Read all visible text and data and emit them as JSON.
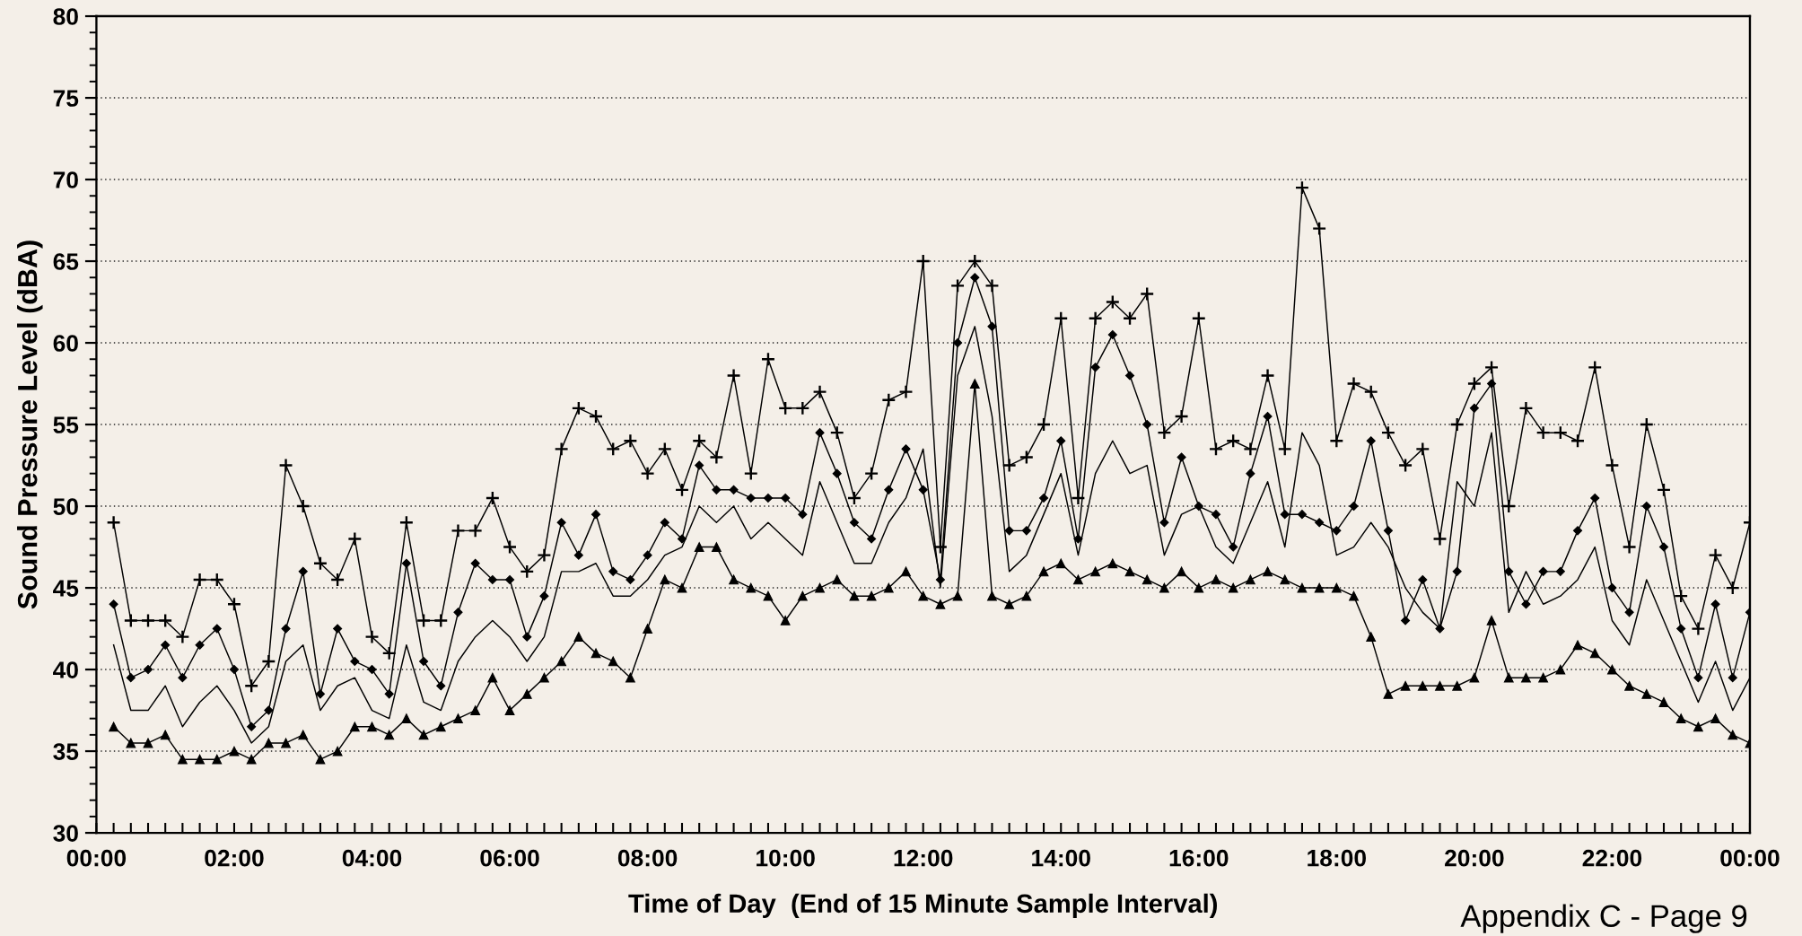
{
  "chart_data": {
    "type": "line",
    "xlabel": "Time of Day  (End of 15 Minute Sample Interval)",
    "ylabel": "Sound Pressure Level (dBA)",
    "annotations": [
      "Appendix C - Page 9"
    ],
    "x": [
      0.25,
      0.5,
      0.75,
      1,
      1.25,
      1.5,
      1.75,
      2,
      2.25,
      2.5,
      2.75,
      3,
      3.25,
      3.5,
      3.75,
      4,
      4.25,
      4.5,
      4.75,
      5,
      5.25,
      5.5,
      5.75,
      6,
      6.25,
      6.5,
      6.75,
      7,
      7.25,
      7.5,
      7.75,
      8,
      8.25,
      8.5,
      8.75,
      9,
      9.25,
      9.5,
      9.75,
      10,
      10.25,
      10.5,
      10.75,
      11,
      11.25,
      11.5,
      11.75,
      12,
      12.25,
      12.5,
      12.75,
      13,
      13.25,
      13.5,
      13.75,
      14,
      14.25,
      14.5,
      14.75,
      15,
      15.25,
      15.5,
      15.75,
      16,
      16.25,
      16.5,
      16.75,
      17,
      17.25,
      17.5,
      17.75,
      18,
      18.25,
      18.5,
      18.75,
      19,
      19.25,
      19.5,
      19.75,
      20,
      20.25,
      20.5,
      20.75,
      21,
      21.25,
      21.5,
      21.75,
      22,
      22.25,
      22.5,
      22.75,
      23,
      23.25,
      23.5,
      23.75,
      24
    ],
    "series": [
      {
        "color": "#000000",
        "marker": "cross",
        "values": [
          49,
          43,
          43,
          43,
          42,
          45.5,
          45.5,
          44,
          39,
          40.5,
          52.5,
          50,
          46.5,
          45.5,
          48,
          42,
          41,
          49,
          43,
          43,
          48.5,
          48.5,
          50.5,
          47.5,
          46,
          47,
          53.5,
          56,
          55.5,
          53.5,
          54,
          52,
          53.5,
          51,
          54,
          53,
          58,
          52,
          59,
          56,
          56,
          57,
          54.5,
          50.5,
          52,
          56.5,
          57,
          65,
          47.5,
          63.5,
          65,
          63.5,
          52.5,
          53,
          55,
          61.5,
          50.5,
          61.5,
          62.5,
          61.5,
          63,
          54.5,
          55.5,
          61.5,
          53.5,
          54,
          53.5,
          58,
          53.5,
          69.5,
          67,
          54,
          57.5,
          57,
          54.5,
          52.5,
          53.5,
          48,
          55,
          57.5,
          58.5,
          50,
          56,
          54.5,
          54.5,
          54,
          58.5,
          52.5,
          47.5,
          55,
          51,
          44.5,
          42.5,
          47,
          45,
          49
        ]
      },
      {
        "color": "#000000",
        "marker": "diamond",
        "values": [
          44,
          39.5,
          40,
          41.5,
          39.5,
          41.5,
          42.5,
          40,
          36.5,
          37.5,
          42.5,
          46,
          38.5,
          42.5,
          40.5,
          40,
          38.5,
          46.5,
          40.5,
          39,
          43.5,
          46.5,
          45.5,
          45.5,
          42,
          44.5,
          49,
          47,
          49.5,
          46,
          45.5,
          47,
          49,
          48,
          52.5,
          51,
          51,
          50.5,
          50.5,
          50.5,
          49.5,
          54.5,
          52,
          49,
          48,
          51,
          53.5,
          51,
          45.5,
          60,
          64,
          61,
          48.5,
          48.5,
          50.5,
          54,
          48,
          58.5,
          60.5,
          58,
          55,
          49,
          53,
          50,
          49.5,
          47.5,
          52,
          55.5,
          49.5,
          49.5,
          49,
          48.5,
          50,
          54,
          48.5,
          43,
          45.5,
          42.5,
          46,
          56,
          57.5,
          46,
          44,
          46,
          46,
          48.5,
          50.5,
          45,
          43.5,
          50,
          47.5,
          42.5,
          39.5,
          44,
          39.5,
          43.5
        ]
      },
      {
        "color": "#000000",
        "marker": "none",
        "values": [
          41.5,
          37.5,
          37.5,
          39,
          36.5,
          38,
          39,
          37.5,
          35.5,
          36.5,
          40.5,
          41.5,
          37.5,
          39,
          39.5,
          37.5,
          37,
          41.5,
          38,
          37.5,
          40.5,
          42,
          43,
          42,
          40.5,
          42,
          46,
          46,
          46.5,
          44.5,
          44.5,
          45.5,
          47,
          47.5,
          50,
          49,
          50,
          48,
          49,
          48,
          47,
          51.5,
          49,
          46.5,
          46.5,
          49,
          50.5,
          53.5,
          45,
          58,
          61,
          55.5,
          46,
          47,
          49.5,
          52,
          47,
          52,
          54,
          52,
          52.5,
          47,
          49.5,
          50,
          47.5,
          46.5,
          49,
          51.5,
          47.5,
          54.5,
          52.5,
          47,
          47.5,
          49,
          47.5,
          45,
          43.5,
          42.5,
          51.5,
          50,
          54.5,
          43.5,
          46,
          44,
          44.5,
          45.5,
          47.5,
          43,
          41.5,
          45.5,
          43,
          40.5,
          38,
          40.5,
          37.5,
          39.5
        ]
      },
      {
        "color": "#000000",
        "marker": "triangle",
        "values": [
          36.5,
          35.5,
          35.5,
          36,
          34.5,
          34.5,
          34.5,
          35,
          34.5,
          35.5,
          35.5,
          36,
          34.5,
          35,
          36.5,
          36.5,
          36,
          37,
          36,
          36.5,
          37,
          37.5,
          39.5,
          37.5,
          38.5,
          39.5,
          40.5,
          42,
          41,
          40.5,
          39.5,
          42.5,
          45.5,
          45,
          47.5,
          47.5,
          45.5,
          45,
          44.5,
          43,
          44.5,
          45,
          45.5,
          44.5,
          44.5,
          45,
          46,
          44.5,
          44,
          44.5,
          57.5,
          44.5,
          44,
          44.5,
          46,
          46.5,
          45.5,
          46,
          46.5,
          46,
          45.5,
          45,
          46,
          45,
          45.5,
          45,
          45.5,
          46,
          45.5,
          45,
          45,
          45,
          44.5,
          42,
          38.5,
          39,
          39,
          39,
          39,
          39.5,
          43,
          39.5,
          39.5,
          39.5,
          40,
          41.5,
          41,
          40,
          39,
          38.5,
          38,
          37,
          36.5,
          37,
          36,
          35.5
        ]
      }
    ],
    "xlim": [
      0,
      24
    ],
    "ylim": [
      30,
      80
    ],
    "xticks": [
      {
        "value": 0,
        "label": "00:00"
      },
      {
        "value": 0.25,
        "label": null
      },
      {
        "value": 0.5,
        "label": null
      },
      {
        "value": 0.75,
        "label": null
      },
      {
        "value": 1,
        "label": null
      },
      {
        "value": 1.25,
        "label": null
      },
      {
        "value": 1.5,
        "label": null
      },
      {
        "value": 1.75,
        "label": null
      },
      {
        "value": 2,
        "label": "02:00"
      },
      {
        "value": 2.25,
        "label": null
      },
      {
        "value": 2.5,
        "label": null
      },
      {
        "value": 2.75,
        "label": null
      },
      {
        "value": 3,
        "label": null
      },
      {
        "value": 3.25,
        "label": null
      },
      {
        "value": 3.5,
        "label": null
      },
      {
        "value": 3.75,
        "label": null
      },
      {
        "value": 4,
        "label": "04:00"
      },
      {
        "value": 4.25,
        "label": null
      },
      {
        "value": 4.5,
        "label": null
      },
      {
        "value": 4.75,
        "label": null
      },
      {
        "value": 5,
        "label": null
      },
      {
        "value": 5.25,
        "label": null
      },
      {
        "value": 5.5,
        "label": null
      },
      {
        "value": 5.75,
        "label": null
      },
      {
        "value": 6,
        "label": "06:00"
      },
      {
        "value": 6.25,
        "label": null
      },
      {
        "value": 6.5,
        "label": null
      },
      {
        "value": 6.75,
        "label": null
      },
      {
        "value": 7,
        "label": null
      },
      {
        "value": 7.25,
        "label": null
      },
      {
        "value": 7.5,
        "label": null
      },
      {
        "value": 7.75,
        "label": null
      },
      {
        "value": 8,
        "label": "08:00"
      },
      {
        "value": 8.25,
        "label": null
      },
      {
        "value": 8.5,
        "label": null
      },
      {
        "value": 8.75,
        "label": null
      },
      {
        "value": 9,
        "label": null
      },
      {
        "value": 9.25,
        "label": null
      },
      {
        "value": 9.5,
        "label": null
      },
      {
        "value": 9.75,
        "label": null
      },
      {
        "value": 10,
        "label": "10:00"
      },
      {
        "value": 10.25,
        "label": null
      },
      {
        "value": 10.5,
        "label": null
      },
      {
        "value": 10.75,
        "label": null
      },
      {
        "value": 11,
        "label": null
      },
      {
        "value": 11.25,
        "label": null
      },
      {
        "value": 11.5,
        "label": null
      },
      {
        "value": 11.75,
        "label": null
      },
      {
        "value": 12,
        "label": "12:00"
      },
      {
        "value": 12.25,
        "label": null
      },
      {
        "value": 12.5,
        "label": null
      },
      {
        "value": 12.75,
        "label": null
      },
      {
        "value": 13,
        "label": null
      },
      {
        "value": 13.25,
        "label": null
      },
      {
        "value": 13.5,
        "label": null
      },
      {
        "value": 13.75,
        "label": null
      },
      {
        "value": 14,
        "label": "14:00"
      },
      {
        "value": 14.25,
        "label": null
      },
      {
        "value": 14.5,
        "label": null
      },
      {
        "value": 14.75,
        "label": null
      },
      {
        "value": 15,
        "label": null
      },
      {
        "value": 15.25,
        "label": null
      },
      {
        "value": 15.5,
        "label": null
      },
      {
        "value": 15.75,
        "label": null
      },
      {
        "value": 16,
        "label": "16:00"
      },
      {
        "value": 16.25,
        "label": null
      },
      {
        "value": 16.5,
        "label": null
      },
      {
        "value": 16.75,
        "label": null
      },
      {
        "value": 17,
        "label": null
      },
      {
        "value": 17.25,
        "label": null
      },
      {
        "value": 17.5,
        "label": null
      },
      {
        "value": 17.75,
        "label": null
      },
      {
        "value": 18,
        "label": "18:00"
      },
      {
        "value": 18.25,
        "label": null
      },
      {
        "value": 18.5,
        "label": null
      },
      {
        "value": 18.75,
        "label": null
      },
      {
        "value": 19,
        "label": null
      },
      {
        "value": 19.25,
        "label": null
      },
      {
        "value": 19.5,
        "label": null
      },
      {
        "value": 19.75,
        "label": null
      },
      {
        "value": 20,
        "label": "20:00"
      },
      {
        "value": 20.25,
        "label": null
      },
      {
        "value": 20.5,
        "label": null
      },
      {
        "value": 20.75,
        "label": null
      },
      {
        "value": 21,
        "label": null
      },
      {
        "value": 21.25,
        "label": null
      },
      {
        "value": 21.5,
        "label": null
      },
      {
        "value": 21.75,
        "label": null
      },
      {
        "value": 22,
        "label": "22:00"
      },
      {
        "value": 22.25,
        "label": null
      },
      {
        "value": 22.5,
        "label": null
      },
      {
        "value": 22.75,
        "label": null
      },
      {
        "value": 23,
        "label": null
      },
      {
        "value": 23.25,
        "label": null
      },
      {
        "value": 23.5,
        "label": null
      },
      {
        "value": 23.75,
        "label": null
      },
      {
        "value": 24,
        "label": "00:00"
      }
    ],
    "yticks": [
      30,
      {
        "value": 31,
        "label": null
      },
      {
        "value": 32,
        "label": null
      },
      {
        "value": 33,
        "label": null
      },
      {
        "value": 34,
        "label": null
      },
      35,
      {
        "value": 36,
        "label": null
      },
      {
        "value": 37,
        "label": null
      },
      {
        "value": 38,
        "label": null
      },
      {
        "value": 39,
        "label": null
      },
      40,
      {
        "value": 41,
        "label": null
      },
      {
        "value": 42,
        "label": null
      },
      {
        "value": 43,
        "label": null
      },
      {
        "value": 44,
        "label": null
      },
      45,
      {
        "value": 46,
        "label": null
      },
      {
        "value": 47,
        "label": null
      },
      {
        "value": 48,
        "label": null
      },
      {
        "value": 49,
        "label": null
      },
      50,
      {
        "value": 51,
        "label": null
      },
      {
        "value": 52,
        "label": null
      },
      {
        "value": 53,
        "label": null
      },
      {
        "value": 54,
        "label": null
      },
      55,
      {
        "value": 56,
        "label": null
      },
      {
        "value": 57,
        "label": null
      },
      {
        "value": 58,
        "label": null
      },
      {
        "value": 59,
        "label": null
      },
      60,
      {
        "value": 61,
        "label": null
      },
      {
        "value": 62,
        "label": null
      },
      {
        "value": 63,
        "label": null
      },
      {
        "value": 64,
        "label": null
      },
      65,
      {
        "value": 66,
        "label": null
      },
      {
        "value": 67,
        "label": null
      },
      {
        "value": 68,
        "label": null
      },
      {
        "value": 69,
        "label": null
      },
      70,
      {
        "value": 71,
        "label": null
      },
      {
        "value": 72,
        "label": null
      },
      {
        "value": 73,
        "label": null
      },
      {
        "value": 74,
        "label": null
      },
      75,
      {
        "value": 76,
        "label": null
      },
      {
        "value": 77,
        "label": null
      },
      {
        "value": 78,
        "label": null
      },
      {
        "value": 79,
        "label": null
      },
      80
    ],
    "grid": "y"
  }
}
